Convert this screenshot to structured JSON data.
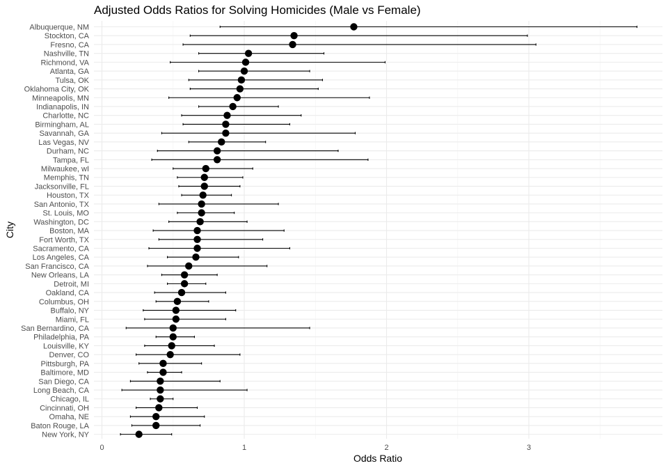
{
  "chart_data": {
    "type": "scatter",
    "title": "Adjusted Odds Ratios for Solving Homicides (Male vs Female)",
    "xlabel": "Odds Ratio",
    "ylabel": "City",
    "xlim": [
      -0.08,
      3.88
    ],
    "x_ticks": [
      0,
      1,
      2,
      3
    ],
    "x_tick_labels": [
      "0",
      "1",
      "2",
      "3"
    ],
    "grid": true,
    "cities": [
      {
        "city": "Albuquerque, NM",
        "or": 1.77,
        "lo": 0.83,
        "hi": 3.76
      },
      {
        "city": "Stockton, CA",
        "or": 1.35,
        "lo": 0.62,
        "hi": 2.99
      },
      {
        "city": "Fresno, CA",
        "or": 1.34,
        "lo": 0.57,
        "hi": 3.05
      },
      {
        "city": "Nashville, TN",
        "or": 1.03,
        "lo": 0.68,
        "hi": 1.56
      },
      {
        "city": "Richmond, VA",
        "or": 1.01,
        "lo": 0.48,
        "hi": 1.99
      },
      {
        "city": "Atlanta, GA",
        "or": 1.0,
        "lo": 0.68,
        "hi": 1.46
      },
      {
        "city": "Tulsa, OK",
        "or": 0.98,
        "lo": 0.61,
        "hi": 1.55
      },
      {
        "city": "Oklahoma City, OK",
        "or": 0.97,
        "lo": 0.62,
        "hi": 1.52
      },
      {
        "city": "Minneapolis, MN",
        "or": 0.95,
        "lo": 0.47,
        "hi": 1.88
      },
      {
        "city": "Indianapolis, IN",
        "or": 0.92,
        "lo": 0.68,
        "hi": 1.24
      },
      {
        "city": "Charlotte, NC",
        "or": 0.88,
        "lo": 0.56,
        "hi": 1.4
      },
      {
        "city": "Birmingham, AL",
        "or": 0.87,
        "lo": 0.57,
        "hi": 1.32
      },
      {
        "city": "Savannah, GA",
        "or": 0.87,
        "lo": 0.42,
        "hi": 1.78
      },
      {
        "city": "Las Vegas, NV",
        "or": 0.84,
        "lo": 0.61,
        "hi": 1.15
      },
      {
        "city": "Durham, NC",
        "or": 0.81,
        "lo": 0.39,
        "hi": 1.66
      },
      {
        "city": "Tampa, FL",
        "or": 0.81,
        "lo": 0.35,
        "hi": 1.87
      },
      {
        "city": "Milwaukee, wI",
        "or": 0.73,
        "lo": 0.5,
        "hi": 1.06
      },
      {
        "city": "Memphis, TN",
        "or": 0.72,
        "lo": 0.53,
        "hi": 0.99
      },
      {
        "city": "Jacksonville, FL",
        "or": 0.72,
        "lo": 0.54,
        "hi": 0.97
      },
      {
        "city": "Houston, TX",
        "or": 0.71,
        "lo": 0.56,
        "hi": 0.91
      },
      {
        "city": "San Antonio, TX",
        "or": 0.7,
        "lo": 0.4,
        "hi": 1.24
      },
      {
        "city": "St. Louis, MO",
        "or": 0.7,
        "lo": 0.53,
        "hi": 0.93
      },
      {
        "city": "Washington, DC",
        "or": 0.69,
        "lo": 0.47,
        "hi": 1.02
      },
      {
        "city": "Boston, MA",
        "or": 0.67,
        "lo": 0.36,
        "hi": 1.28
      },
      {
        "city": "Fort Worth, TX",
        "or": 0.67,
        "lo": 0.4,
        "hi": 1.13
      },
      {
        "city": "Sacramento, CA",
        "or": 0.67,
        "lo": 0.33,
        "hi": 1.32
      },
      {
        "city": "Los Angeles, CA",
        "or": 0.66,
        "lo": 0.46,
        "hi": 0.96
      },
      {
        "city": "San Francisco, CA",
        "or": 0.61,
        "lo": 0.32,
        "hi": 1.16
      },
      {
        "city": "New Orleans, LA",
        "or": 0.58,
        "lo": 0.42,
        "hi": 0.81
      },
      {
        "city": "Detroit, MI",
        "or": 0.58,
        "lo": 0.46,
        "hi": 0.73
      },
      {
        "city": "Oakland, CA",
        "or": 0.56,
        "lo": 0.37,
        "hi": 0.87
      },
      {
        "city": "Columbus, OH",
        "or": 0.53,
        "lo": 0.38,
        "hi": 0.75
      },
      {
        "city": "Buffalo, NY",
        "or": 0.52,
        "lo": 0.29,
        "hi": 0.94
      },
      {
        "city": "Miami, FL",
        "or": 0.52,
        "lo": 0.3,
        "hi": 0.87
      },
      {
        "city": "San Bernardino, CA",
        "or": 0.5,
        "lo": 0.17,
        "hi": 1.46
      },
      {
        "city": "Philadelphia, PA",
        "or": 0.5,
        "lo": 0.38,
        "hi": 0.65
      },
      {
        "city": "Louisville, KY",
        "or": 0.49,
        "lo": 0.3,
        "hi": 0.79
      },
      {
        "city": "Denver, CO",
        "or": 0.48,
        "lo": 0.24,
        "hi": 0.97
      },
      {
        "city": "Pittsburgh, PA",
        "or": 0.43,
        "lo": 0.26,
        "hi": 0.7
      },
      {
        "city": "Baltimore, MD",
        "or": 0.43,
        "lo": 0.32,
        "hi": 0.56
      },
      {
        "city": "San Diego, CA",
        "or": 0.41,
        "lo": 0.2,
        "hi": 0.83
      },
      {
        "city": "Long Beach, CA",
        "or": 0.41,
        "lo": 0.14,
        "hi": 1.02
      },
      {
        "city": "Chicago, IL",
        "or": 0.41,
        "lo": 0.34,
        "hi": 0.5
      },
      {
        "city": "Cincinnati, OH",
        "or": 0.4,
        "lo": 0.24,
        "hi": 0.67
      },
      {
        "city": "Omaha, NE",
        "or": 0.38,
        "lo": 0.2,
        "hi": 0.72
      },
      {
        "city": "Baton Rouge, LA",
        "or": 0.38,
        "lo": 0.21,
        "hi": 0.69
      },
      {
        "city": "New York, NY",
        "or": 0.26,
        "lo": 0.13,
        "hi": 0.49
      }
    ]
  }
}
